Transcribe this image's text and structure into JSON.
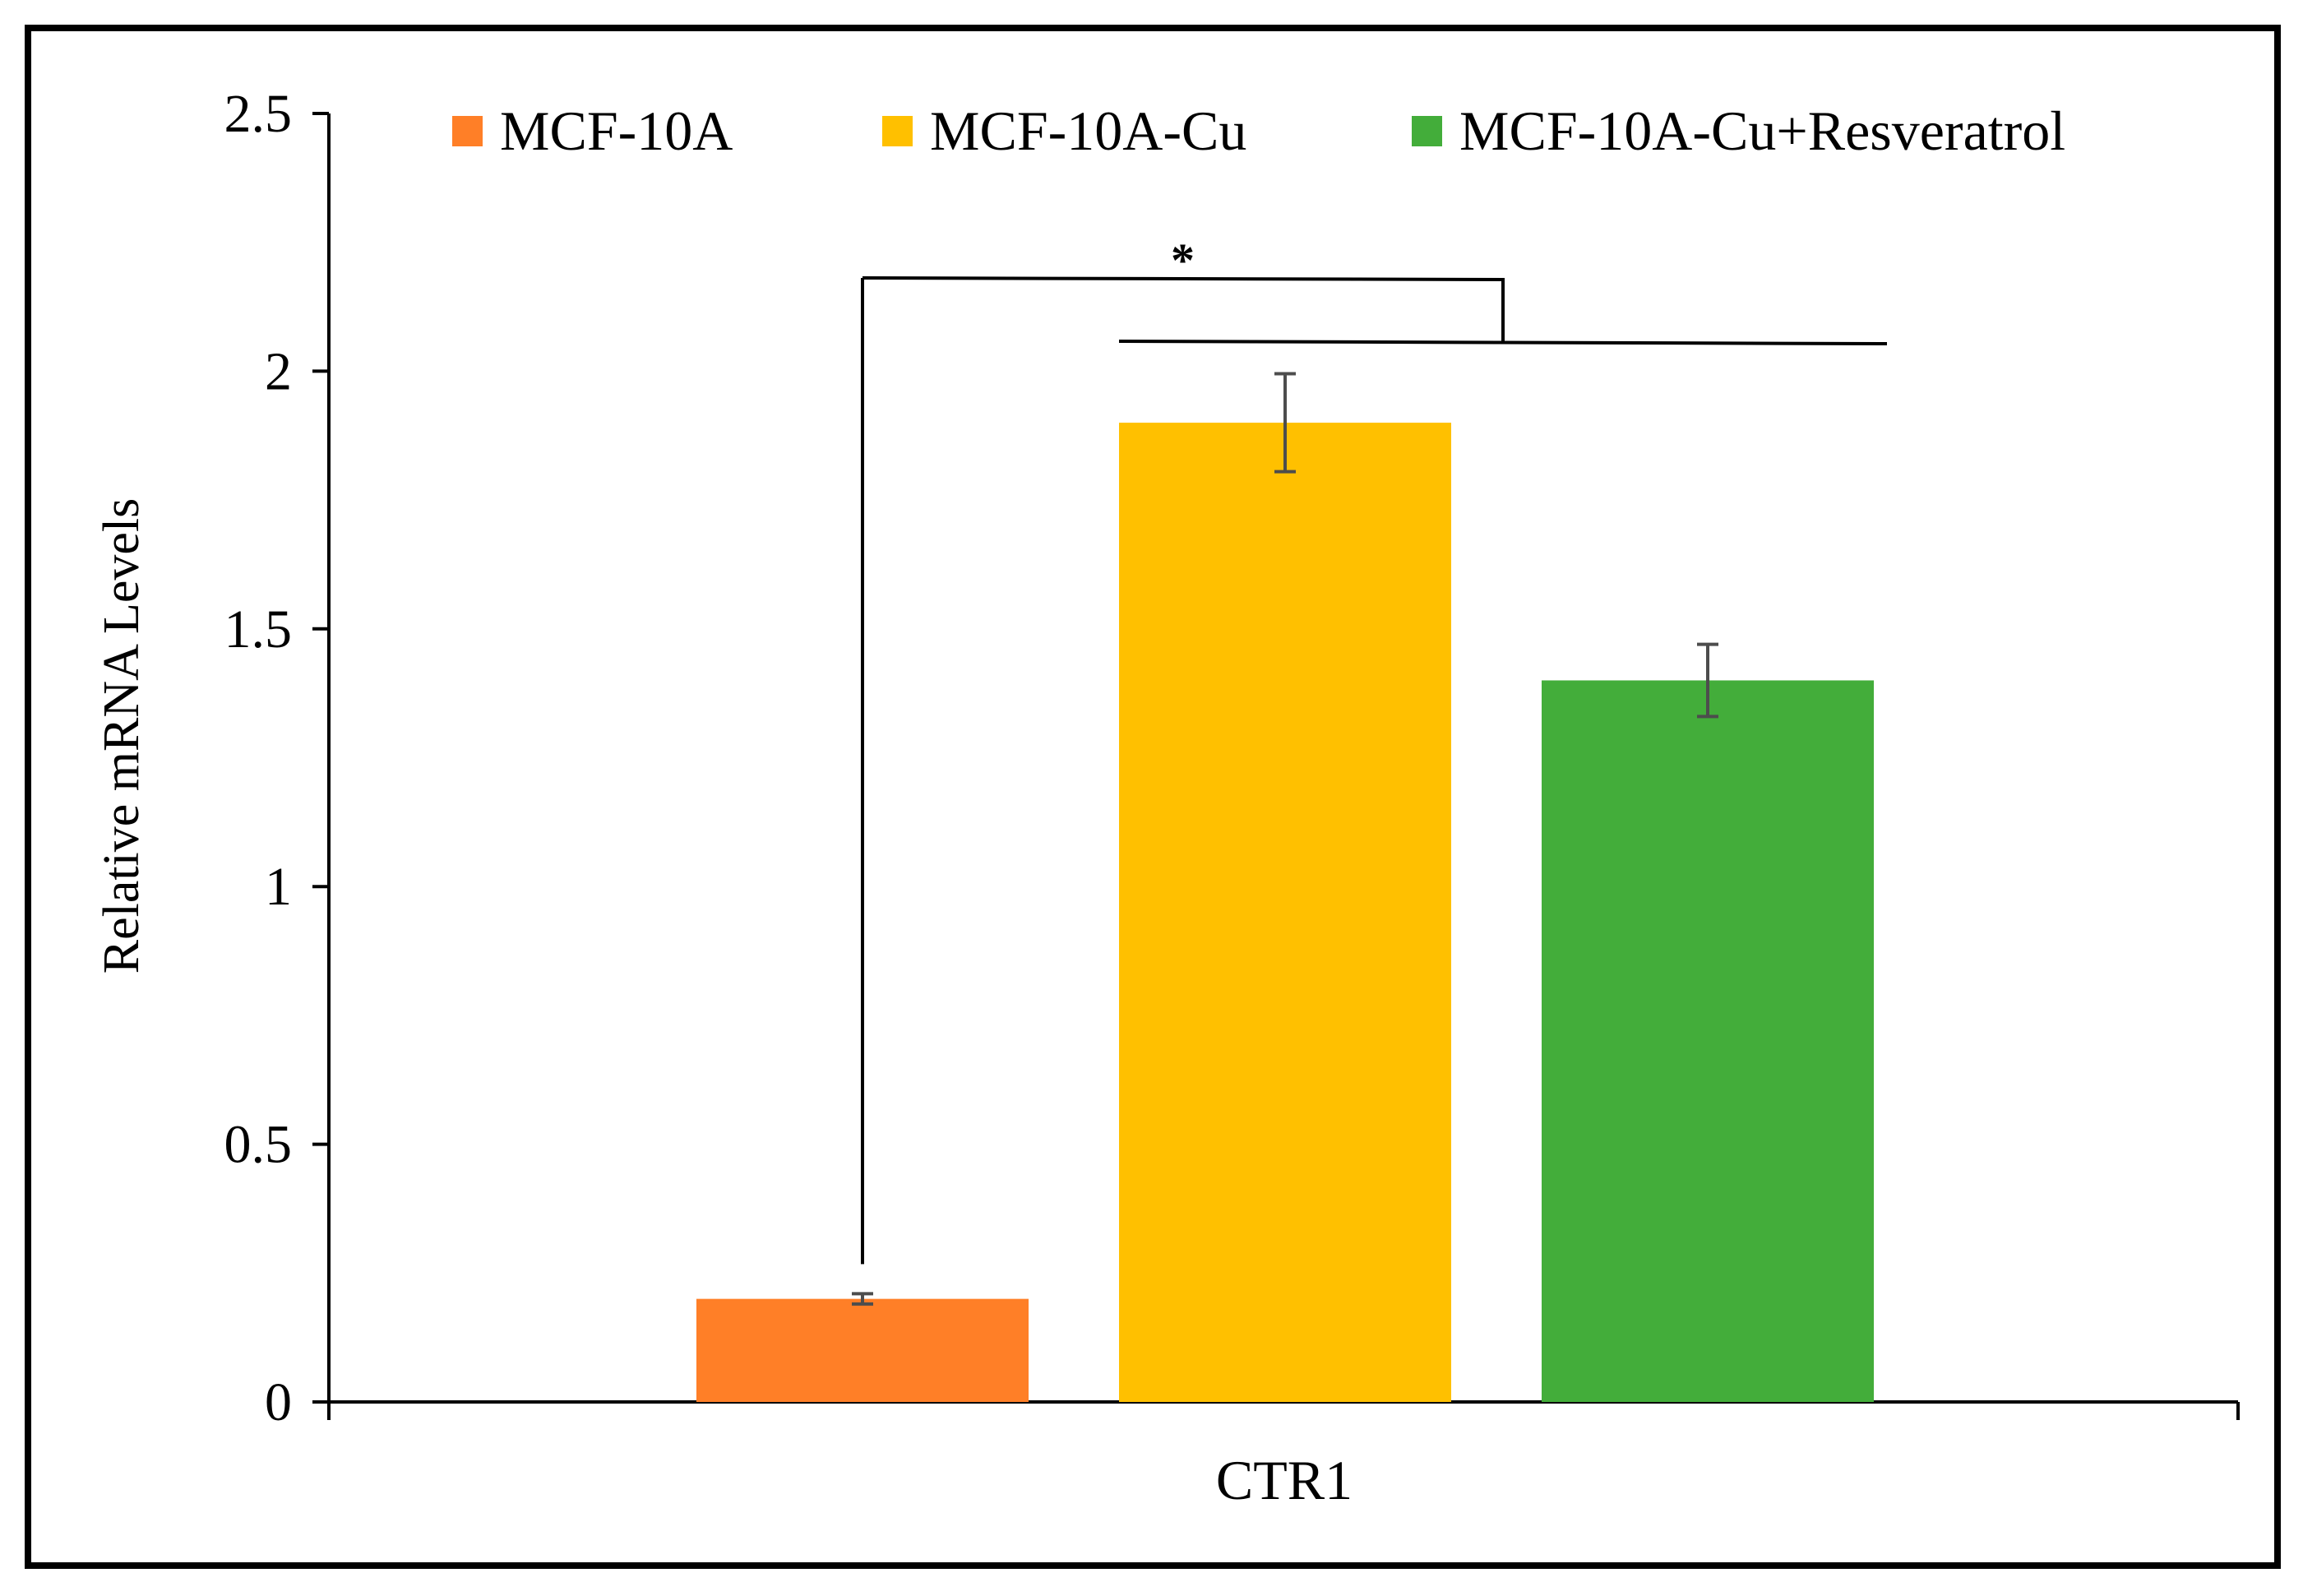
{
  "chart_data": {
    "type": "bar",
    "title": "",
    "xlabel": "CTR1",
    "ylabel": "Relative mRNA Levels",
    "ylim": [
      0,
      2.5
    ],
    "yticks": [
      {
        "value": 0,
        "label": "0"
      },
      {
        "value": 0.5,
        "label": "0.5"
      },
      {
        "value": 1,
        "label": "1"
      },
      {
        "value": 1.5,
        "label": "1.5"
      },
      {
        "value": 2,
        "label": "2"
      },
      {
        "value": 2.5,
        "label": "2.5"
      }
    ],
    "categories": [
      "CTR1"
    ],
    "series": [
      {
        "name": "MCF-10A",
        "color": "#FF7F27",
        "values": [
          0.2
        ],
        "errors": [
          0.01
        ]
      },
      {
        "name": "MCF-10A-Cu",
        "color": "#FFC000",
        "values": [
          1.9
        ],
        "errors": [
          0.095
        ]
      },
      {
        "name": "MCF-10A-Cu+Resveratrol",
        "color": "#43AD3A",
        "values": [
          1.4
        ],
        "errors": [
          0.07
        ]
      }
    ],
    "grid": false,
    "legend_position": "top",
    "annotations": [
      {
        "type": "significance",
        "text": "*",
        "from_series": 0,
        "to_series": [
          1,
          2
        ]
      }
    ]
  }
}
